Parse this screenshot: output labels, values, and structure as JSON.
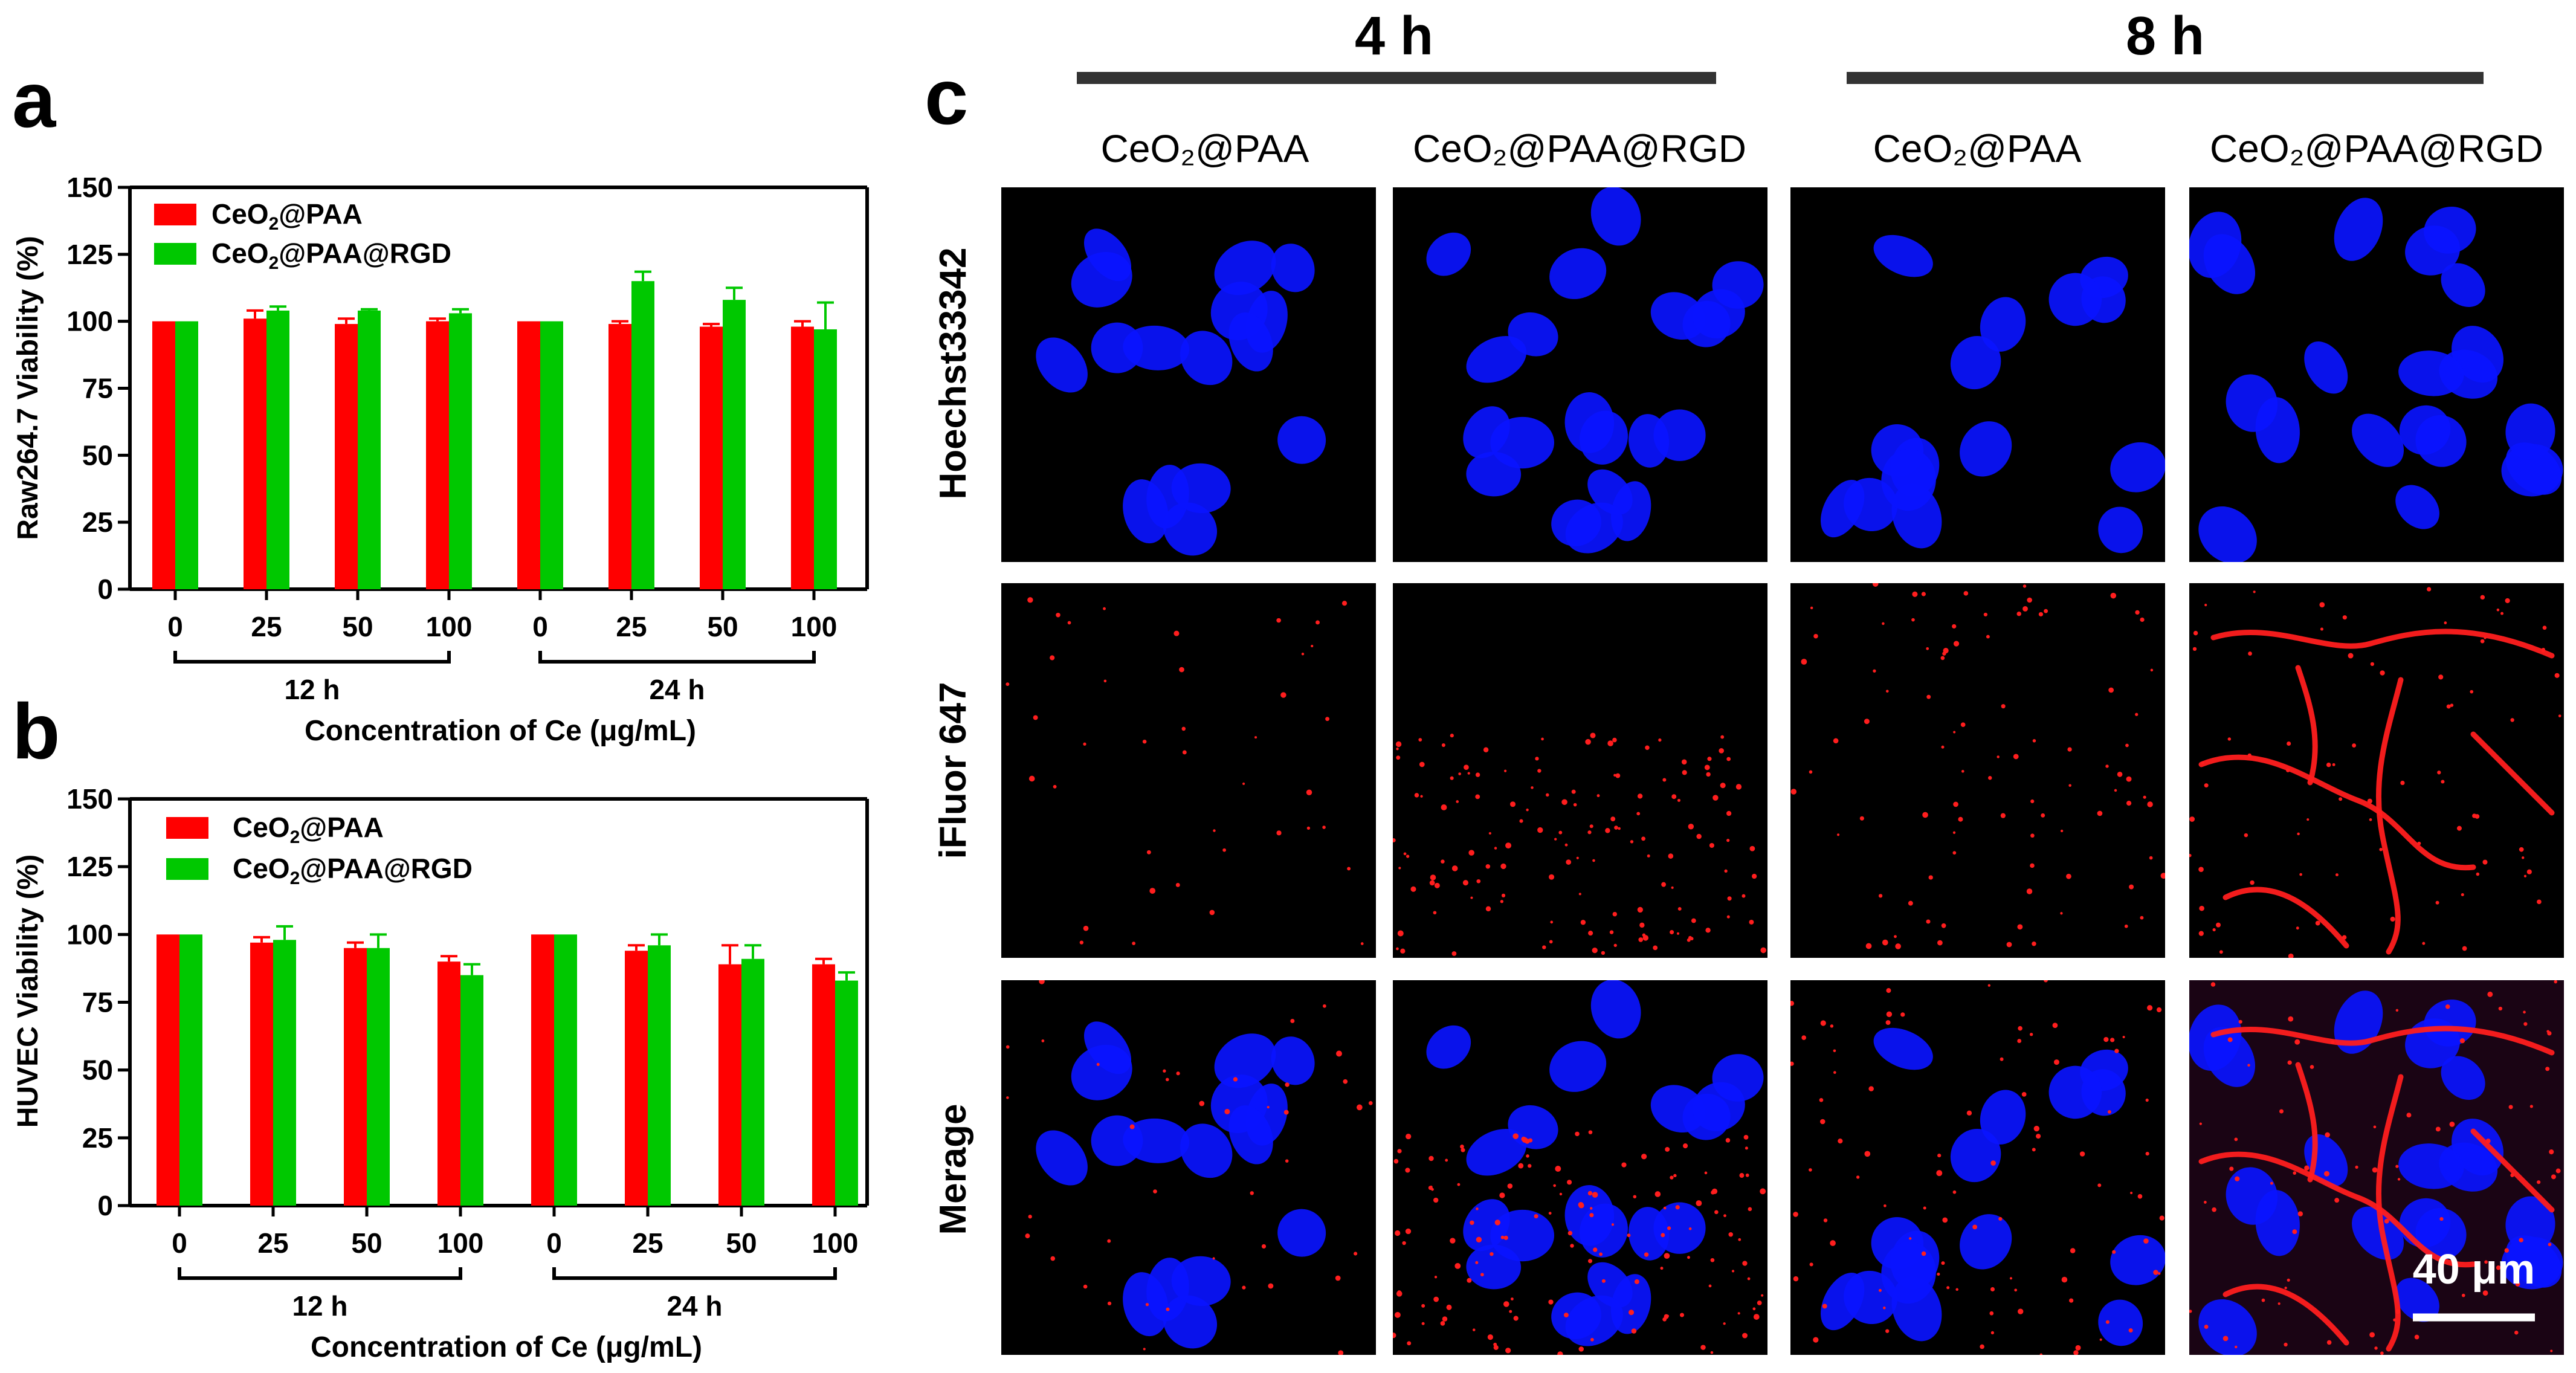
{
  "colors": {
    "cep": "#ff0000",
    "cer": "#00c800",
    "axis": "#000000",
    "nucleus": "#0a14ff",
    "dye": "#ff1e1e",
    "scalebar": "#ffffff"
  },
  "panels": {
    "a": "a",
    "b": "b",
    "c": "c"
  },
  "microscopy": {
    "time_4h": "4 h",
    "time_8h": "8 h",
    "column_headers": [
      "CeO₂@PAA",
      "CeO₂@PAA@RGD",
      "CeO₂@PAA",
      "CeO₂@PAA@RGD"
    ],
    "row_labels": [
      "Hoechst33342",
      "iFluor 647",
      "Merage"
    ],
    "scale_bar": "40 μm"
  },
  "chart_data": [
    {
      "type": "bar",
      "ylabel": "Raw264.7 Viability (%)",
      "xlabel": "Concentration of Ce (μg/mL)",
      "categories": [
        "0",
        "25",
        "50",
        "100",
        "0",
        "25",
        "50",
        "100"
      ],
      "groups": [
        "12 h",
        "24 h"
      ],
      "ylim": [
        0,
        150
      ],
      "yticks": [
        "0",
        "25",
        "50",
        "75",
        "100",
        "125",
        "150"
      ],
      "legend": "top-left",
      "grid": false,
      "series": [
        {
          "name": "CeO₂@PAA",
          "values": [
            100,
            101,
            99,
            100,
            100,
            99,
            98,
            98
          ],
          "errors": [
            0,
            3,
            2,
            1,
            0,
            1,
            1,
            2
          ]
        },
        {
          "name": "CeO₂@PAA@RGD",
          "values": [
            100,
            104,
            104,
            103,
            100,
            115,
            108,
            97
          ],
          "errors": [
            0,
            1.5,
            0.5,
            1.5,
            0,
            3.5,
            4.5,
            10
          ]
        }
      ]
    },
    {
      "type": "bar",
      "ylabel": "HUVEC Viability (%)",
      "xlabel": "Concentration of Ce (μg/mL)",
      "categories": [
        "0",
        "25",
        "50",
        "100",
        "0",
        "25",
        "50",
        "100"
      ],
      "groups": [
        "12 h",
        "24 h"
      ],
      "ylim": [
        0,
        150
      ],
      "yticks": [
        "0",
        "25",
        "50",
        "75",
        "100",
        "125",
        "150"
      ],
      "legend": "top-left",
      "grid": false,
      "series": [
        {
          "name": "CeO₂@PAA",
          "values": [
            100,
            97,
            95,
            90,
            100,
            94,
            89,
            89
          ],
          "errors": [
            0,
            2,
            2,
            2,
            0,
            2,
            7,
            2
          ]
        },
        {
          "name": "CeO₂@PAA@RGD",
          "values": [
            100,
            98,
            95,
            85,
            100,
            96,
            91,
            83
          ],
          "errors": [
            0,
            5,
            5,
            4,
            0,
            4,
            5,
            3
          ]
        }
      ]
    }
  ]
}
